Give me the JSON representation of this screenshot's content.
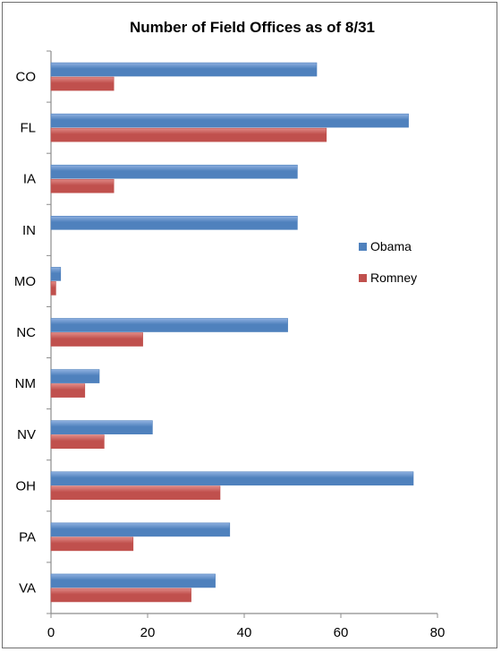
{
  "chart_data": {
    "type": "bar",
    "orientation": "horizontal",
    "title": "Number of Field Offices as of 8/31",
    "xlabel": "",
    "ylabel": "",
    "categories": [
      "CO",
      "FL",
      "IA",
      "IN",
      "MO",
      "NC",
      "NM",
      "NV",
      "OH",
      "PA",
      "VA"
    ],
    "series": [
      {
        "name": "Obama",
        "color": "#4f81bd",
        "values": [
          55,
          74,
          51,
          51,
          2,
          49,
          10,
          21,
          75,
          37,
          34
        ]
      },
      {
        "name": "Romney",
        "color": "#c0504d",
        "values": [
          13,
          57,
          13,
          0,
          1,
          19,
          7,
          11,
          35,
          17,
          29
        ]
      }
    ],
    "xlim": [
      0,
      80
    ],
    "xticks": [
      0,
      20,
      40,
      60,
      80
    ],
    "grid": false,
    "legend_position": "right"
  }
}
